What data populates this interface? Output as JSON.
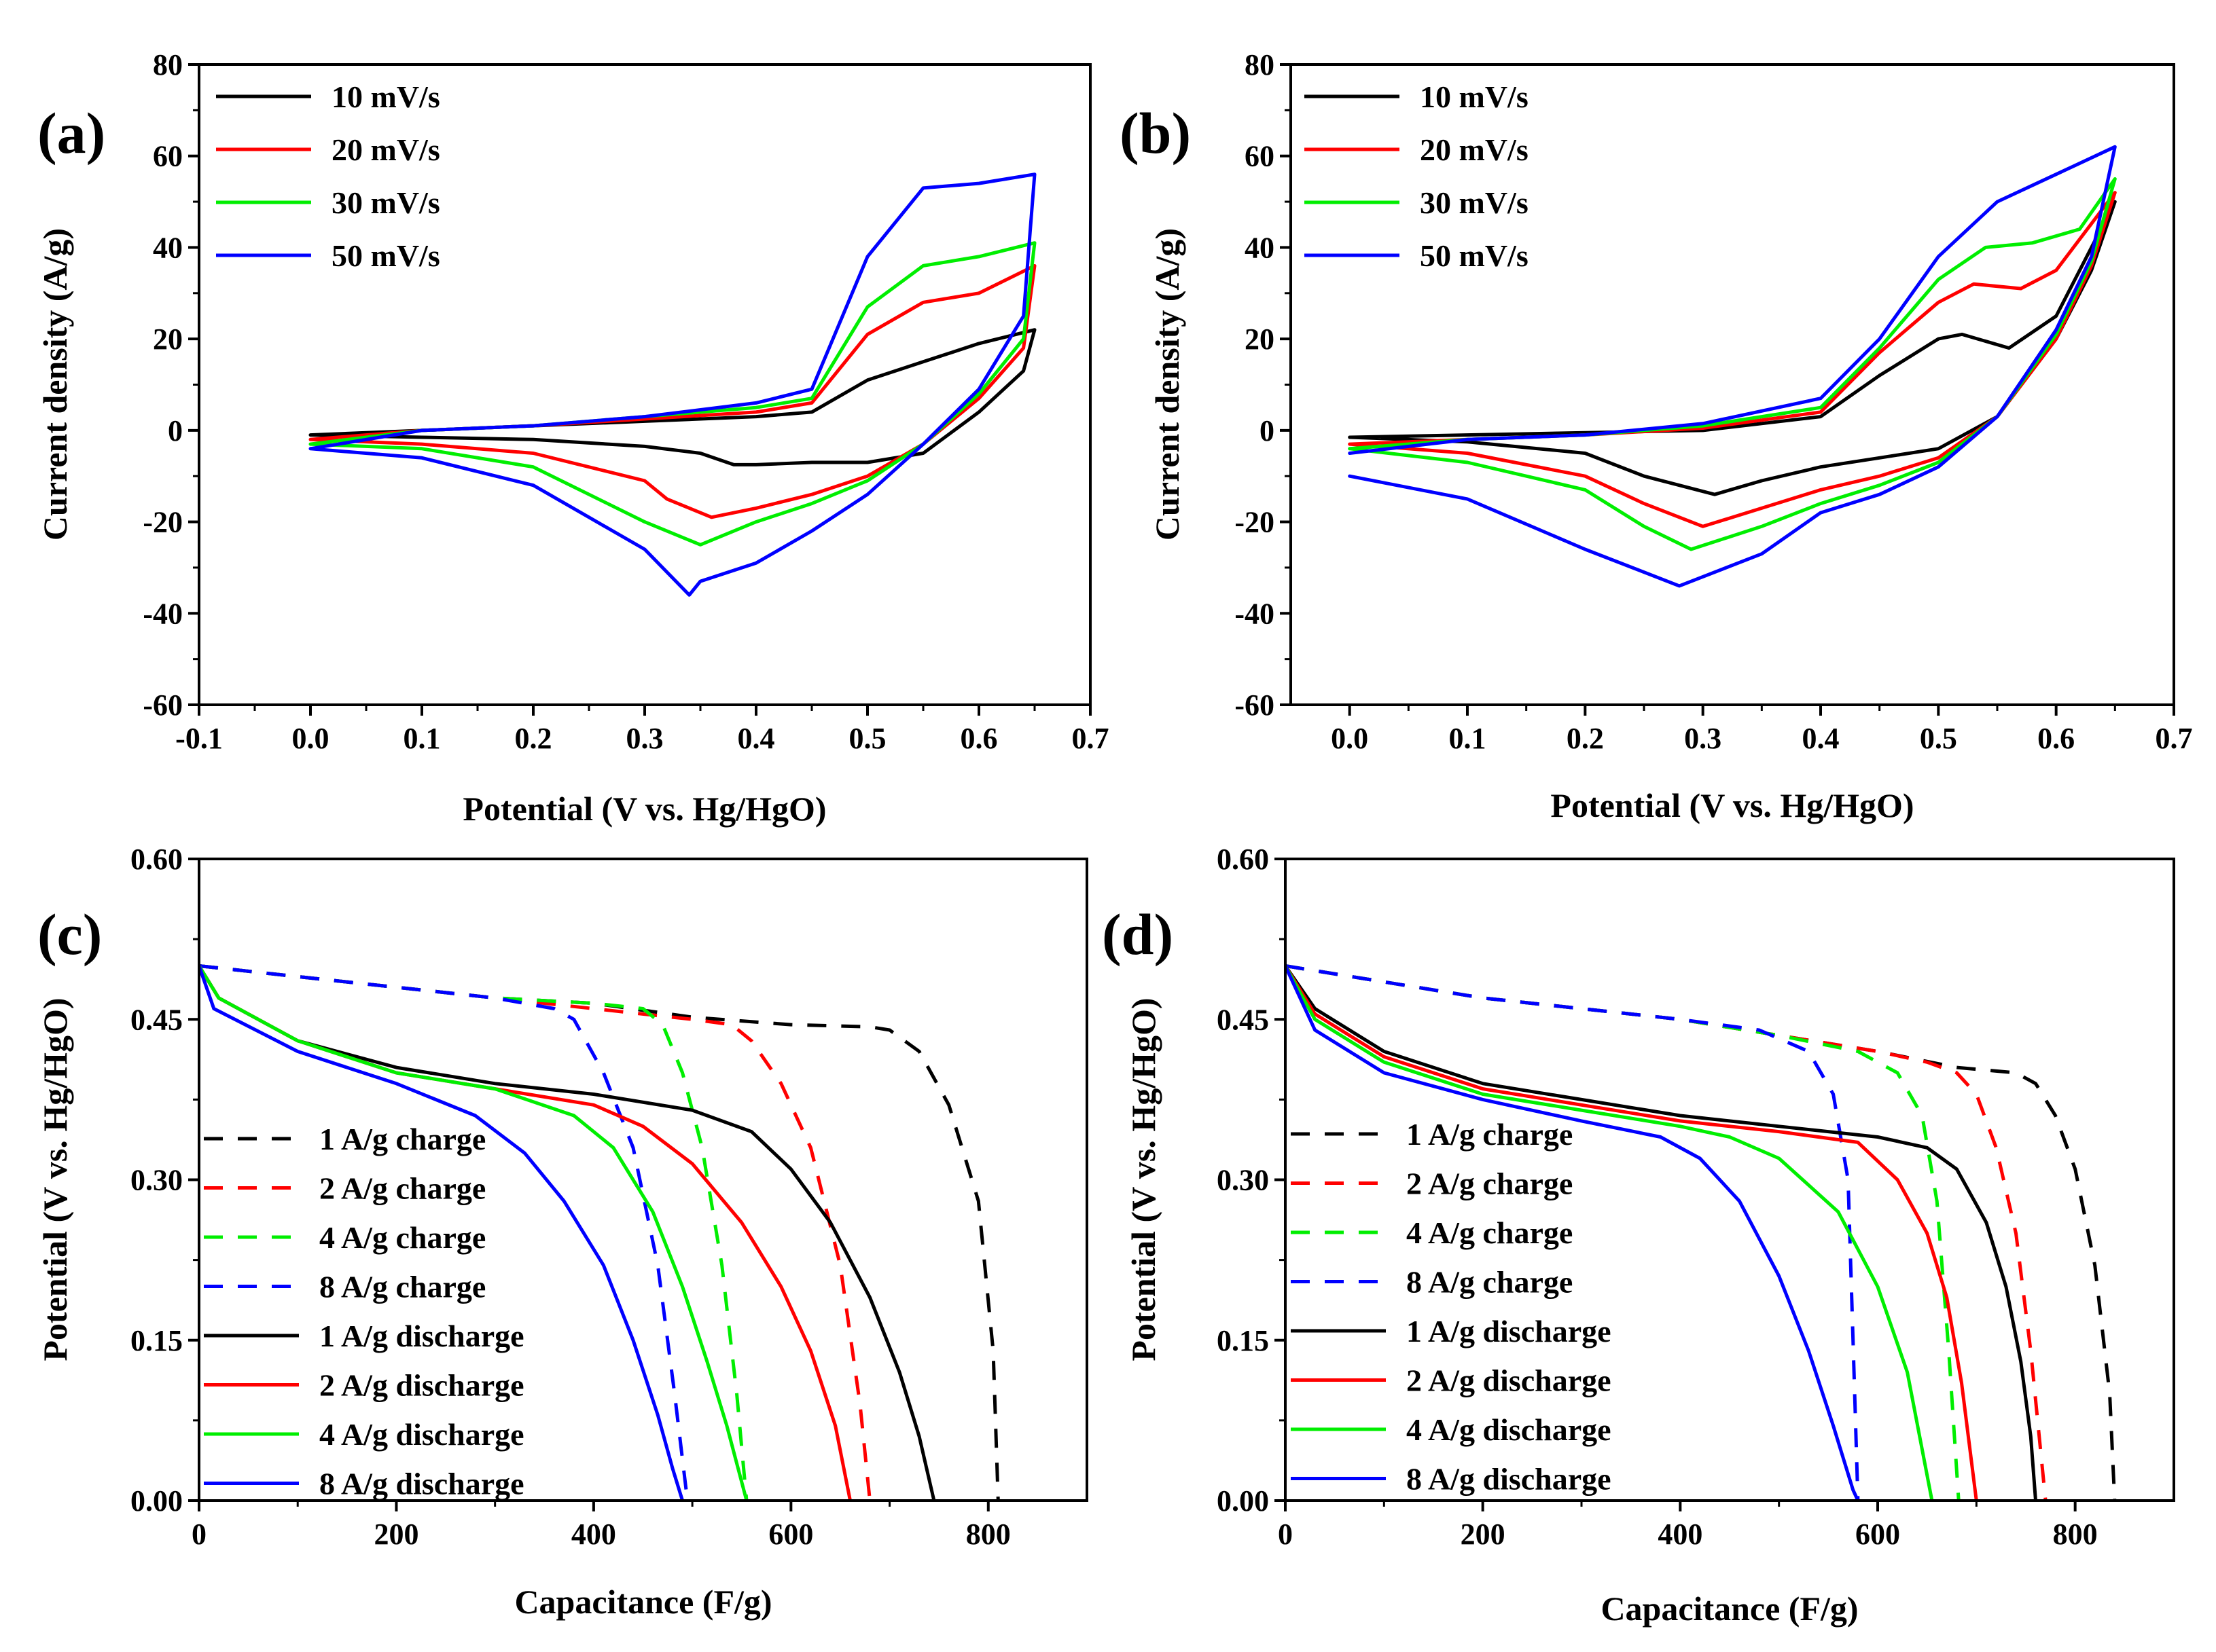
{
  "chart_data": [
    {
      "type": "line",
      "panel_label": "(a)",
      "xlabel": "Potential (V vs. Hg/HgO)",
      "ylabel": "Current density (A/g)",
      "xlim": [
        -0.1,
        0.7
      ],
      "ylim": [
        -60,
        80
      ],
      "xticks": [
        "-0.1",
        "0.0",
        "0.1",
        "0.2",
        "0.3",
        "0.4",
        "0.5",
        "0.6",
        "0.7"
      ],
      "yticks": [
        "-60",
        "-40",
        "-20",
        "0",
        "20",
        "40",
        "60",
        "80"
      ],
      "legend_position": "top-left",
      "series": [
        {
          "name": "10 mV/s",
          "color": "#000000",
          "dash": false,
          "x": [
            0.0,
            0.1,
            0.2,
            0.3,
            0.4,
            0.45,
            0.5,
            0.55,
            0.6,
            0.65,
            0.64,
            0.6,
            0.55,
            0.5,
            0.45,
            0.4,
            0.38,
            0.35,
            0.3,
            0.2,
            0.1,
            0.0
          ],
          "y": [
            -1,
            0,
            1,
            2,
            3,
            4,
            11,
            15,
            19,
            22,
            13,
            4,
            -5,
            -7,
            -7,
            -7.5,
            -7.5,
            -5,
            -3.5,
            -2,
            -1.5,
            -1
          ]
        },
        {
          "name": "20 mV/s",
          "color": "#ff0000",
          "dash": false,
          "x": [
            0.0,
            0.1,
            0.2,
            0.3,
            0.4,
            0.45,
            0.5,
            0.55,
            0.6,
            0.65,
            0.64,
            0.6,
            0.55,
            0.5,
            0.45,
            0.4,
            0.36,
            0.32,
            0.3,
            0.2,
            0.1,
            0.0
          ],
          "y": [
            -2,
            0,
            1,
            2.5,
            4,
            6,
            21,
            28,
            30,
            36,
            18,
            7,
            -3,
            -10,
            -14,
            -17,
            -19,
            -15,
            -11,
            -5,
            -3,
            -2
          ]
        },
        {
          "name": "30 mV/s",
          "color": "#00ee00",
          "dash": false,
          "x": [
            0.0,
            0.1,
            0.2,
            0.3,
            0.4,
            0.45,
            0.5,
            0.55,
            0.6,
            0.65,
            0.64,
            0.6,
            0.55,
            0.5,
            0.45,
            0.4,
            0.35,
            0.3,
            0.2,
            0.1,
            0.0
          ],
          "y": [
            -3,
            0,
            1,
            3,
            5,
            7,
            27,
            36,
            38,
            41,
            20,
            8,
            -3,
            -11,
            -16,
            -20,
            -25,
            -20,
            -8,
            -4,
            -3
          ]
        },
        {
          "name": "50 mV/s",
          "color": "#0000ff",
          "dash": false,
          "x": [
            0.0,
            0.1,
            0.2,
            0.3,
            0.4,
            0.45,
            0.5,
            0.55,
            0.6,
            0.65,
            0.64,
            0.6,
            0.55,
            0.5,
            0.45,
            0.4,
            0.35,
            0.34,
            0.3,
            0.2,
            0.1,
            0.0
          ],
          "y": [
            -4,
            0,
            1,
            3,
            6,
            9,
            38,
            53,
            54,
            56,
            25,
            9,
            -3,
            -14,
            -22,
            -29,
            -33,
            -36,
            -26,
            -12,
            -6,
            -4
          ]
        }
      ]
    },
    {
      "type": "line",
      "panel_label": "(b)",
      "xlabel": "Potential (V vs. Hg/HgO)",
      "ylabel": "Current density (A/g)",
      "xlim": [
        -0.05,
        0.7
      ],
      "ylim": [
        -60,
        80
      ],
      "xticks": [
        "0.0",
        "0.1",
        "0.2",
        "0.3",
        "0.4",
        "0.5",
        "0.6",
        "0.7"
      ],
      "yticks": [
        "-60",
        "-40",
        "-20",
        "0",
        "20",
        "40",
        "60",
        "80"
      ],
      "legend_position": "top-left",
      "series": [
        {
          "name": "10 mV/s",
          "color": "#000000",
          "dash": false,
          "x": [
            0.0,
            0.1,
            0.2,
            0.3,
            0.4,
            0.45,
            0.5,
            0.52,
            0.56,
            0.6,
            0.65,
            0.63,
            0.6,
            0.55,
            0.5,
            0.45,
            0.4,
            0.35,
            0.31,
            0.25,
            0.2,
            0.1,
            0.0
          ],
          "y": [
            -1.5,
            -1,
            -0.5,
            0,
            3,
            12,
            20,
            21,
            18,
            25,
            50,
            35,
            20,
            3,
            -4,
            -6,
            -8,
            -11,
            -14,
            -10,
            -5,
            -2.5,
            -1.5
          ]
        },
        {
          "name": "20 mV/s",
          "color": "#ff0000",
          "dash": false,
          "x": [
            0.0,
            0.1,
            0.2,
            0.3,
            0.4,
            0.45,
            0.5,
            0.53,
            0.57,
            0.6,
            0.65,
            0.63,
            0.6,
            0.55,
            0.5,
            0.45,
            0.4,
            0.35,
            0.3,
            0.25,
            0.2,
            0.1,
            0.0
          ],
          "y": [
            -3,
            -2,
            -1,
            0.5,
            4,
            17,
            28,
            32,
            31,
            35,
            52,
            36,
            20,
            3,
            -6,
            -10,
            -13,
            -17,
            -21,
            -16,
            -10,
            -5,
            -3
          ]
        },
        {
          "name": "30 mV/s",
          "color": "#00ee00",
          "dash": false,
          "x": [
            0.0,
            0.1,
            0.2,
            0.3,
            0.4,
            0.45,
            0.5,
            0.54,
            0.58,
            0.62,
            0.65,
            0.63,
            0.6,
            0.55,
            0.5,
            0.45,
            0.4,
            0.35,
            0.29,
            0.25,
            0.2,
            0.1,
            0.0
          ],
          "y": [
            -4,
            -2,
            -1,
            1,
            5,
            18,
            33,
            40,
            41,
            44,
            55,
            37,
            21,
            3,
            -7,
            -12,
            -16,
            -21,
            -26,
            -21,
            -13,
            -7,
            -4
          ]
        },
        {
          "name": "50 mV/s",
          "color": "#0000ff",
          "dash": false,
          "x": [
            0.0,
            0.1,
            0.2,
            0.3,
            0.4,
            0.45,
            0.5,
            0.55,
            0.6,
            0.65,
            0.63,
            0.6,
            0.55,
            0.5,
            0.45,
            0.4,
            0.35,
            0.28,
            0.2,
            0.1,
            0.0
          ],
          "y": [
            -5,
            -2,
            -1,
            1.5,
            7,
            20,
            38,
            50,
            56,
            62,
            38,
            22,
            3,
            -8,
            -14,
            -18,
            -27,
            -34,
            -26,
            -15,
            -10
          ]
        }
      ]
    },
    {
      "type": "line",
      "panel_label": "(c)",
      "xlabel": "Capacitance (F/g)",
      "ylabel": "Potential (V vs. Hg/HgO)",
      "xlim": [
        0,
        900
      ],
      "ylim": [
        0.0,
        0.6
      ],
      "xticks": [
        "0",
        "200",
        "400",
        "600",
        "800"
      ],
      "yticks": [
        "0.00",
        "0.15",
        "0.30",
        "0.45",
        "0.60"
      ],
      "legend_position": "bottom-left",
      "series": [
        {
          "name": "1 A/g charge",
          "color": "#000000",
          "dash": true,
          "x": [
            0,
            100,
            200,
            300,
            400,
            500,
            600,
            680,
            700,
            730,
            760,
            790,
            805,
            810
          ],
          "y": [
            0.5,
            0.49,
            0.48,
            0.47,
            0.465,
            0.452,
            0.445,
            0.443,
            0.44,
            0.42,
            0.37,
            0.28,
            0.14,
            0.0
          ]
        },
        {
          "name": "2 A/g charge",
          "color": "#ff0000",
          "dash": true,
          "x": [
            0,
            100,
            200,
            300,
            400,
            500,
            540,
            560,
            590,
            620,
            650,
            670,
            680
          ],
          "y": [
            0.5,
            0.49,
            0.48,
            0.47,
            0.46,
            0.45,
            0.445,
            0.43,
            0.39,
            0.33,
            0.22,
            0.09,
            0.0
          ]
        },
        {
          "name": "4 A/g charge",
          "color": "#00ee00",
          "dash": true,
          "x": [
            0,
            100,
            200,
            300,
            400,
            450,
            470,
            490,
            510,
            530,
            545,
            555
          ],
          "y": [
            0.5,
            0.49,
            0.48,
            0.47,
            0.465,
            0.46,
            0.445,
            0.4,
            0.33,
            0.22,
            0.1,
            0.0
          ]
        },
        {
          "name": "8 A/g charge",
          "color": "#0000ff",
          "dash": true,
          "x": [
            0,
            100,
            200,
            300,
            360,
            380,
            410,
            440,
            465,
            482,
            495
          ],
          "y": [
            0.5,
            0.49,
            0.48,
            0.47,
            0.46,
            0.45,
            0.4,
            0.33,
            0.22,
            0.1,
            0.0
          ]
        },
        {
          "name": "1 A/g discharge",
          "color": "#000000",
          "dash": false,
          "x": [
            0,
            20,
            100,
            200,
            300,
            400,
            500,
            560,
            600,
            640,
            680,
            710,
            730,
            745
          ],
          "y": [
            0.5,
            0.47,
            0.43,
            0.405,
            0.39,
            0.38,
            0.365,
            0.345,
            0.31,
            0.26,
            0.19,
            0.12,
            0.06,
            0.0
          ]
        },
        {
          "name": "2 A/g discharge",
          "color": "#ff0000",
          "dash": false,
          "x": [
            0,
            20,
            100,
            200,
            300,
            400,
            450,
            500,
            550,
            590,
            620,
            645,
            660
          ],
          "y": [
            0.5,
            0.47,
            0.43,
            0.4,
            0.385,
            0.37,
            0.35,
            0.315,
            0.26,
            0.2,
            0.14,
            0.07,
            0.0
          ]
        },
        {
          "name": "4 A/g discharge",
          "color": "#00ee00",
          "dash": false,
          "x": [
            0,
            20,
            100,
            200,
            300,
            380,
            420,
            460,
            490,
            515,
            535,
            555
          ],
          "y": [
            0.5,
            0.47,
            0.43,
            0.4,
            0.385,
            0.36,
            0.33,
            0.27,
            0.2,
            0.13,
            0.07,
            0.0
          ]
        },
        {
          "name": "8 A/g discharge",
          "color": "#0000ff",
          "dash": false,
          "x": [
            0,
            15,
            100,
            200,
            280,
            330,
            370,
            410,
            440,
            465,
            480,
            490
          ],
          "y": [
            0.5,
            0.46,
            0.42,
            0.39,
            0.36,
            0.325,
            0.28,
            0.22,
            0.15,
            0.08,
            0.03,
            0.0
          ]
        }
      ]
    },
    {
      "type": "line",
      "panel_label": "(d)",
      "xlabel": "Capacitance (F/g)",
      "ylabel": "Potential (V vs. Hg/HgO)",
      "xlim": [
        0,
        900
      ],
      "ylim": [
        0.0,
        0.6
      ],
      "xticks": [
        "0",
        "200",
        "400",
        "600",
        "800"
      ],
      "yticks": [
        "0.00",
        "0.15",
        "0.30",
        "0.45",
        "0.60"
      ],
      "legend_position": "bottom-left",
      "series": [
        {
          "name": "1 A/g charge",
          "color": "#000000",
          "dash": true,
          "x": [
            0,
            100,
            200,
            300,
            400,
            500,
            600,
            680,
            740,
            760,
            780,
            800,
            820,
            835,
            840
          ],
          "y": [
            0.5,
            0.485,
            0.47,
            0.46,
            0.45,
            0.435,
            0.42,
            0.405,
            0.4,
            0.39,
            0.36,
            0.31,
            0.22,
            0.1,
            0.0
          ]
        },
        {
          "name": "2 A/g charge",
          "color": "#ff0000",
          "dash": true,
          "x": [
            0,
            100,
            200,
            300,
            400,
            500,
            600,
            650,
            680,
            700,
            720,
            740,
            755,
            770
          ],
          "y": [
            0.5,
            0.485,
            0.47,
            0.46,
            0.45,
            0.435,
            0.42,
            0.41,
            0.4,
            0.38,
            0.33,
            0.25,
            0.14,
            0.0
          ]
        },
        {
          "name": "4 A/g charge",
          "color": "#00ee00",
          "dash": true,
          "x": [
            0,
            100,
            200,
            300,
            400,
            500,
            580,
            620,
            645,
            660,
            672,
            682
          ],
          "y": [
            0.5,
            0.485,
            0.47,
            0.46,
            0.45,
            0.435,
            0.42,
            0.4,
            0.36,
            0.28,
            0.14,
            0.0
          ]
        },
        {
          "name": "8 A/g charge",
          "color": "#0000ff",
          "dash": true,
          "x": [
            0,
            100,
            200,
            300,
            400,
            480,
            530,
            555,
            570,
            575,
            580
          ],
          "y": [
            0.5,
            0.485,
            0.47,
            0.46,
            0.45,
            0.44,
            0.42,
            0.38,
            0.3,
            0.15,
            0.0
          ]
        },
        {
          "name": "1 A/g discharge",
          "color": "#000000",
          "dash": false,
          "x": [
            0,
            30,
            100,
            200,
            300,
            400,
            500,
            600,
            650,
            680,
            710,
            730,
            745,
            755,
            760
          ],
          "y": [
            0.5,
            0.46,
            0.42,
            0.39,
            0.375,
            0.36,
            0.35,
            0.34,
            0.33,
            0.31,
            0.26,
            0.2,
            0.13,
            0.06,
            0.0
          ]
        },
        {
          "name": "2 A/g discharge",
          "color": "#ff0000",
          "dash": false,
          "x": [
            0,
            30,
            100,
            200,
            300,
            400,
            500,
            580,
            620,
            650,
            670,
            685,
            700
          ],
          "y": [
            0.5,
            0.455,
            0.415,
            0.385,
            0.37,
            0.355,
            0.345,
            0.335,
            0.3,
            0.25,
            0.19,
            0.11,
            0.0
          ]
        },
        {
          "name": "4 A/g discharge",
          "color": "#00ee00",
          "dash": false,
          "x": [
            0,
            30,
            100,
            200,
            300,
            400,
            450,
            500,
            560,
            600,
            630,
            655
          ],
          "y": [
            0.5,
            0.45,
            0.41,
            0.38,
            0.365,
            0.35,
            0.34,
            0.32,
            0.27,
            0.2,
            0.12,
            0.0
          ]
        },
        {
          "name": "8 A/g discharge",
          "color": "#0000ff",
          "dash": false,
          "x": [
            0,
            30,
            100,
            200,
            300,
            380,
            420,
            460,
            500,
            530,
            555,
            575,
            580
          ],
          "y": [
            0.5,
            0.44,
            0.4,
            0.375,
            0.355,
            0.34,
            0.32,
            0.28,
            0.21,
            0.14,
            0.07,
            0.01,
            0.0
          ]
        }
      ]
    }
  ]
}
